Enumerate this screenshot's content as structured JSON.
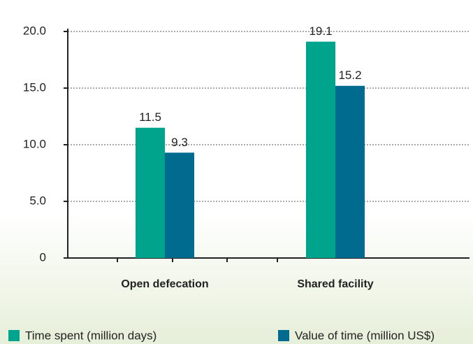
{
  "chart_data": {
    "type": "bar",
    "categories": [
      "Open defecation",
      "Shared facility"
    ],
    "series": [
      {
        "name": "Time spent (million days)",
        "color": "#00a48c",
        "values": [
          11.5,
          19.1
        ],
        "value_labels": [
          "11.5",
          "19.1"
        ]
      },
      {
        "name": "Value of time (million US$)",
        "color": "#006a8f",
        "values": [
          9.3,
          15.2
        ],
        "value_labels": [
          "9.3",
          "15.2"
        ]
      }
    ],
    "ylim": [
      0,
      20
    ],
    "yticks": [
      0,
      {
        "value": 5,
        "label": "5.0"
      },
      {
        "value": 10,
        "label": "10.0"
      },
      {
        "value": 15,
        "label": "15.0"
      },
      {
        "value": 20,
        "label": "20.0"
      }
    ],
    "grid": true,
    "legend": "bottom"
  }
}
